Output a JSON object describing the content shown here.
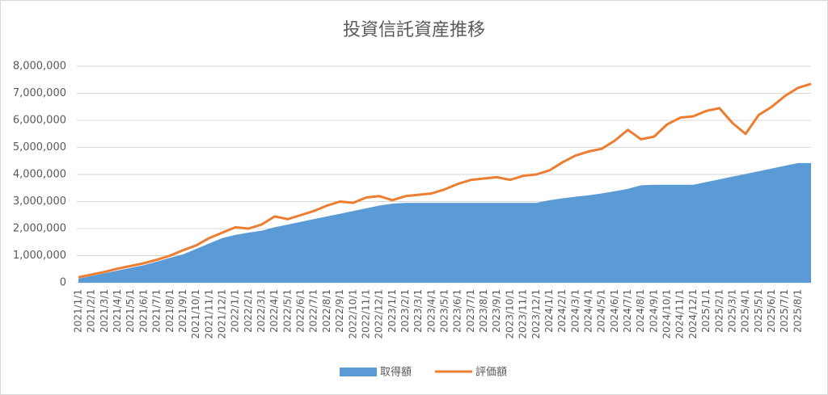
{
  "chart_data": {
    "type": "line",
    "title": "投資信託資産推移",
    "categories": [
      "2021/1/1",
      "2021/2/1",
      "2021/3/1",
      "2021/4/1",
      "2021/5/1",
      "2021/6/1",
      "2021/7/1",
      "2021/8/1",
      "2021/9/1",
      "2021/10/1",
      "2021/11/1",
      "2021/12/1",
      "2022/1/1",
      "2022/2/1",
      "2022/3/1",
      "2022/4/1",
      "2022/5/1",
      "2022/6/1",
      "2022/7/1",
      "2022/8/1",
      "2022/9/1",
      "2022/10/1",
      "2022/11/1",
      "2022/12/1",
      "2023/1/1",
      "2023/2/1",
      "2023/3/1",
      "2023/4/1",
      "2023/5/1",
      "2023/6/1",
      "2023/7/1",
      "2023/8/1",
      "2023/9/1",
      "2023/10/1",
      "2023/11/1",
      "2023/12/1",
      "2024/1/1",
      "2024/2/1",
      "2024/3/1",
      "2024/4/1",
      "2024/5/1",
      "2024/6/1",
      "2024/7/1",
      "2024/8/1",
      "2024/9/1",
      "2024/10/1",
      "2024/11/1",
      "2024/12/1",
      "2025/1/1",
      "2025/2/1",
      "2025/3/1",
      "2025/4/1",
      "2025/5/1",
      "2025/6/1",
      "2025/7/1",
      "2025/8/1",
      null
    ],
    "series": [
      {
        "name": "取得額",
        "type": "area",
        "color": "#5b9bd5",
        "values": [
          150000,
          250000,
          350000,
          450000,
          550000,
          650000,
          780000,
          920000,
          1050000,
          1250000,
          1450000,
          1650000,
          1770000,
          1850000,
          1920000,
          2050000,
          2150000,
          2250000,
          2350000,
          2450000,
          2550000,
          2650000,
          2750000,
          2850000,
          2920000,
          2950000,
          2950000,
          2950000,
          2950000,
          2950000,
          2950000,
          2950000,
          2950000,
          2950000,
          2950000,
          2950000,
          3050000,
          3120000,
          3180000,
          3230000,
          3300000,
          3380000,
          3470000,
          3600000,
          3620000,
          3620000,
          3620000,
          3620000,
          3720000,
          3820000,
          3920000,
          4020000,
          4120000,
          4220000,
          4320000,
          4420000,
          4420000
        ]
      },
      {
        "name": "評価額",
        "type": "line",
        "color": "#ed7d31",
        "values": [
          200000,
          300000,
          400000,
          520000,
          620000,
          720000,
          850000,
          1000000,
          1200000,
          1380000,
          1650000,
          1850000,
          2050000,
          2000000,
          2150000,
          2450000,
          2350000,
          2500000,
          2650000,
          2850000,
          3000000,
          2950000,
          3150000,
          3200000,
          3050000,
          3200000,
          3250000,
          3300000,
          3450000,
          3650000,
          3800000,
          3850000,
          3900000,
          3800000,
          3950000,
          4000000,
          4150000,
          4450000,
          4700000,
          4850000,
          4950000,
          5250000,
          5650000,
          5300000,
          5400000,
          5850000,
          6100000,
          6150000,
          6350000,
          6450000,
          5900000,
          5500000,
          6200000,
          6500000,
          6900000,
          7200000,
          7350000
        ]
      }
    ],
    "ylim": [
      0,
      8000000
    ],
    "yticks": [
      0,
      {
        "value": 1000000,
        "label": "1,000,000"
      },
      {
        "value": 2000000,
        "label": "2,000,000"
      },
      {
        "value": 3000000,
        "label": "3,000,000"
      },
      {
        "value": 4000000,
        "label": "4,000,000"
      },
      {
        "value": 5000000,
        "label": "5,000,000"
      },
      {
        "value": 6000000,
        "label": "6,000,000"
      },
      {
        "value": 7000000,
        "label": "7,000,000"
      },
      {
        "value": 8000000,
        "label": "8,000,000"
      }
    ],
    "grid": true,
    "legend": "bottom"
  }
}
